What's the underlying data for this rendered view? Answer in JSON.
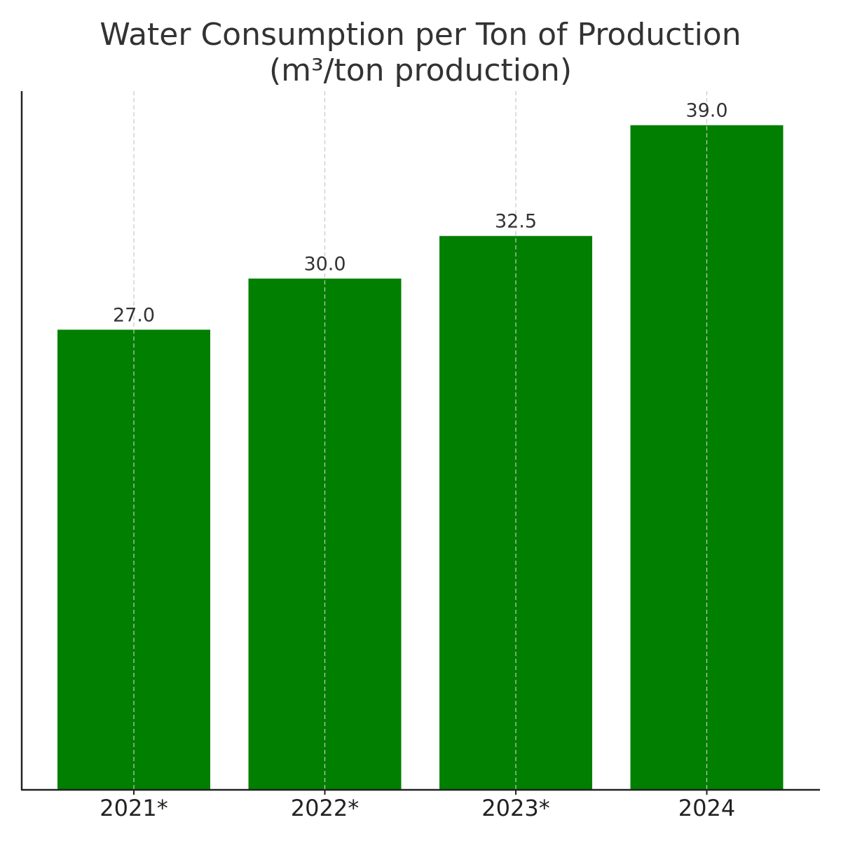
{
  "chart_data": {
    "type": "bar",
    "title": "Water Consumption per Ton of Production",
    "subtitle": "(m³/ton production)",
    "categories": [
      "2021*",
      "2022*",
      "2023*",
      "2024"
    ],
    "values": [
      27.0,
      30.0,
      32.5,
      39.0
    ],
    "value_labels": [
      "27.0",
      "30.0",
      "32.5",
      "39.0"
    ],
    "xlabel": "",
    "ylabel": "",
    "ylim": [
      0,
      41
    ],
    "grid": "vertical dashed",
    "legend": "none",
    "colors": {
      "bar": "#007f00",
      "grid": "#c8c8c8",
      "axis": "#222222",
      "text": "#333333"
    }
  }
}
